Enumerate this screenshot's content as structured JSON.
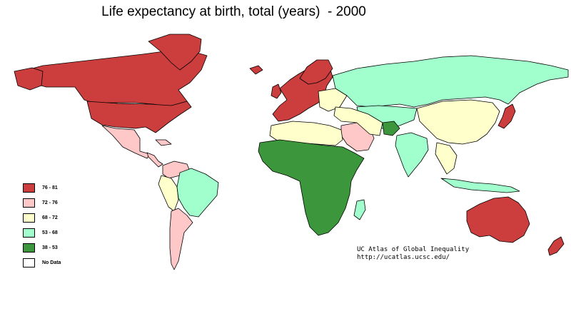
{
  "title": "Life expectancy at birth, total (years)  - 2000",
  "legend": [
    {
      "label": "76 - 81",
      "color": "#cc3d3d"
    },
    {
      "label": "72 - 76",
      "color": "#ffc8c8"
    },
    {
      "label": "68 - 72",
      "color": "#ffffcc"
    },
    {
      "label": "53 - 68",
      "color": "#a0ffcc"
    },
    {
      "label": "38 - 53",
      "color": "#3c963c"
    },
    {
      "label": "No Data",
      "color": "#ffffff"
    }
  ],
  "credit": {
    "line1": "UC Atlas of Global Inequality",
    "line2": "http://ucatlas.ucsc.edu/"
  },
  "colors": {
    "border": "#000000",
    "ocean": "#ffffff"
  }
}
